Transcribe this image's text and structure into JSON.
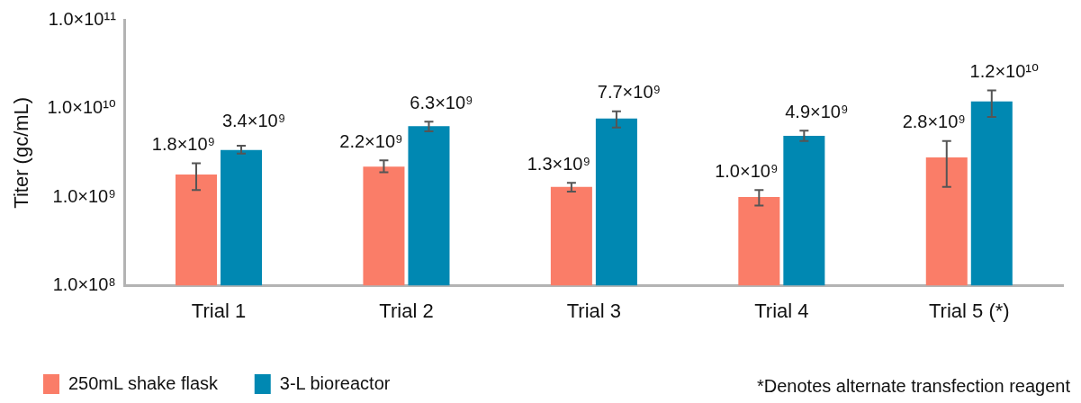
{
  "chart_data": {
    "type": "bar",
    "ylabel": "Titer (gc/mL)",
    "categories": [
      "Trial 1",
      "Trial 2",
      "Trial 3",
      "Trial 4",
      "Trial 5 (*)"
    ],
    "series": [
      {
        "name": "250mL shake flask",
        "color": "#fa7d68",
        "values": [
          1800000000.0,
          2200000000.0,
          1300000000.0,
          1000000000.0,
          2800000000.0
        ],
        "errors": [
          [
            1200000000.0,
            2400000000.0
          ],
          [
            1900000000.0,
            2600000000.0
          ],
          [
            1150000000.0,
            1450000000.0
          ],
          [
            800000000.0,
            1200000000.0
          ],
          [
            1300000000.0,
            4300000000.0
          ]
        ],
        "value_labels": [
          "1.8×10⁹",
          "2.2×10⁹",
          "1.3×10⁹",
          "1.0×10⁹",
          "2.8×10⁹"
        ]
      },
      {
        "name": "3-L bioreactor",
        "color": "#0088b2",
        "values": [
          3400000000.0,
          6300000000.0,
          7700000000.0,
          4900000000.0,
          12000000000.0
        ],
        "errors": [
          [
            3100000000.0,
            3800000000.0
          ],
          [
            5500000000.0,
            7100000000.0
          ],
          [
            6100000000.0,
            9300000000.0
          ],
          [
            4300000000.0,
            5600000000.0
          ],
          [
            8000000000.0,
            16000000000.0
          ]
        ],
        "value_labels": [
          "3.4×10⁹",
          "6.3×10⁹",
          "7.7×10⁹",
          "4.9×10⁹",
          "1.2×10¹⁰"
        ]
      }
    ],
    "log": "y",
    "ylim": [
      100000000.0,
      100000000000.0
    ],
    "yticks": [
      {
        "value": 100000000.0,
        "label": "1.0×10⁸"
      },
      {
        "value": 1000000000.0,
        "label": "1.0×10⁹"
      },
      {
        "value": 10000000000.0,
        "label": "1.0×10¹⁰"
      },
      {
        "value": 100000000000.0,
        "label": "1.0×10¹¹"
      }
    ],
    "grid": false,
    "legend": "bottom",
    "annotations": [
      "*Denotes alternate transfection reagent"
    ]
  }
}
